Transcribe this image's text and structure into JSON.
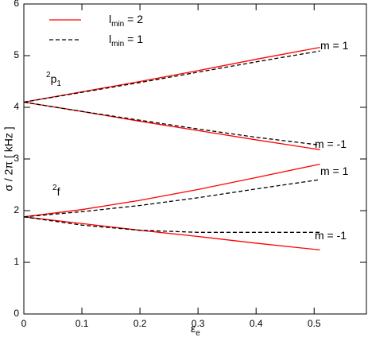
{
  "chart_data": {
    "type": "line",
    "xlabel": [
      "ε",
      "e"
    ],
    "ylabel": "σ / 2π [ kHz ]",
    "x": [
      0,
      0.1,
      0.2,
      0.3,
      0.4,
      0.51
    ],
    "xlim": [
      0,
      0.59
    ],
    "xticks": [
      0,
      0.1,
      0.2,
      0.3,
      0.4,
      0.5
    ],
    "ylim": [
      0,
      6
    ],
    "yticks": [
      0,
      1,
      2,
      3,
      4,
      5,
      6
    ],
    "series": [
      {
        "name": [
          "l",
          "min",
          " = 2"
        ],
        "color": "#ff0000",
        "dash": false,
        "curves": [
          [
            4.1,
            4.3,
            4.5,
            4.71,
            4.93,
            5.16
          ],
          [
            4.1,
            3.92,
            3.73,
            3.55,
            3.37,
            3.18
          ],
          [
            1.88,
            2.02,
            2.2,
            2.41,
            2.64,
            2.9
          ],
          [
            1.88,
            1.75,
            1.62,
            1.5,
            1.37,
            1.24
          ]
        ]
      },
      {
        "name": [
          "l",
          "min",
          " = 1"
        ],
        "color": "#000000",
        "dash": true,
        "curves": [
          [
            4.1,
            4.29,
            4.48,
            4.68,
            4.88,
            5.09
          ],
          [
            4.1,
            3.92,
            3.75,
            3.58,
            3.42,
            3.27
          ],
          [
            1.88,
            1.98,
            2.1,
            2.25,
            2.42,
            2.6
          ],
          [
            1.88,
            1.72,
            1.62,
            1.58,
            1.58,
            1.58
          ]
        ]
      }
    ],
    "annotations": [
      [
        "2",
        "p",
        "1"
      ],
      [
        "2",
        "f"
      ],
      [
        "m = 1"
      ],
      [
        "m = -1"
      ],
      [
        "m = 1"
      ],
      [
        "m = -1"
      ]
    ]
  }
}
